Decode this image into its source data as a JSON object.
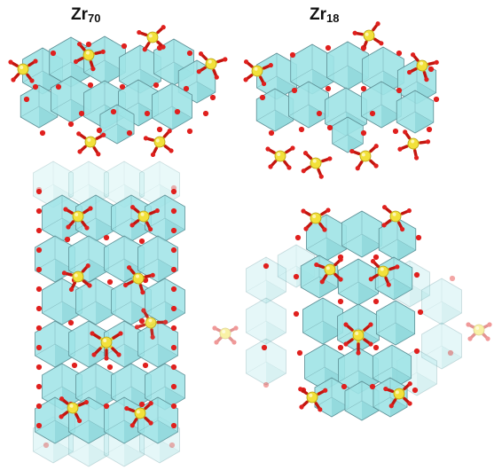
{
  "labels": [
    {
      "id": "zr70",
      "base": "Zr",
      "sub": "70"
    },
    {
      "id": "zr18",
      "base": "Zr",
      "sub": "18"
    }
  ],
  "colors": {
    "polyhedron_fill": "#9ee3e6",
    "polyhedron_edge": "#5c8e94",
    "oxygen": "#e0201e",
    "sulfur": "#f2e13a",
    "bond_red": "#c2160f",
    "bond_yellow": "#e7d52e"
  },
  "icons": [
    "zr-polyhedron",
    "oxygen-atom",
    "sulfate-group"
  ]
}
